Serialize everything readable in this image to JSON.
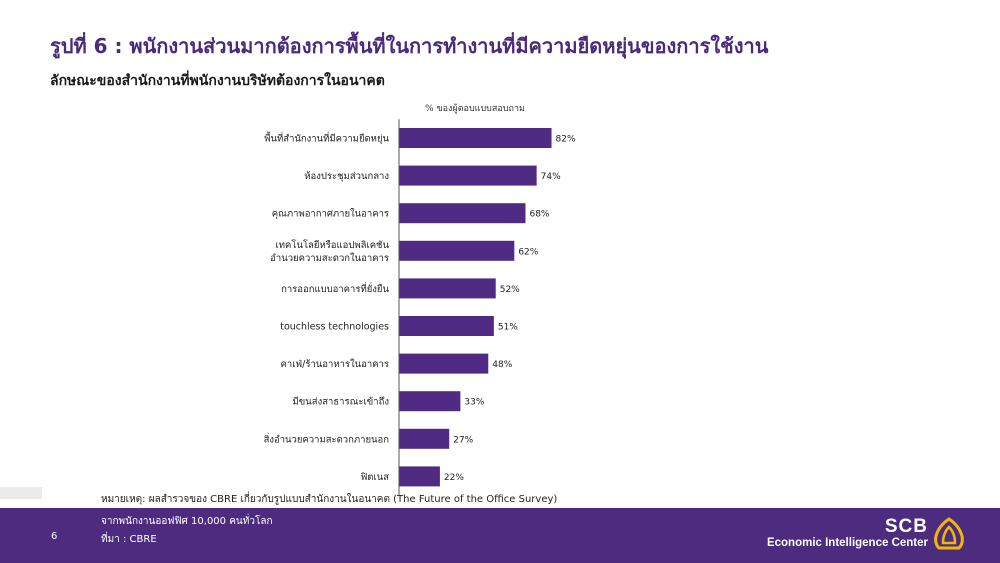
{
  "header": {
    "title": "รูปที่ 6 : พนักงานส่วนมากต้องการพื้นที่ในการทำงานที่มีความยืดหยุ่นของการใช้งาน",
    "subtitle": "ลักษณะของสำนักงานที่พนักงานบริษัทต้องการในอนาคต"
  },
  "chart_data": {
    "type": "bar",
    "orientation": "horizontal",
    "value_caption": "% ของผู้ตอบแบบสอบถาม",
    "categories": [
      [
        "พื้นที่สำนักงานที่มีความยืดหยุ่น"
      ],
      [
        "ห้องประชุมส่วนกลาง"
      ],
      [
        "คุณภาพอากาศภายในอาคาร"
      ],
      [
        "เทคโนโลยีหรือแอปพลิเคชัน",
        "อำนวยความสะดวกในอาคาร"
      ],
      [
        "การออกแบบอาคารที่ยั่งยืน"
      ],
      [
        "touchless technologies"
      ],
      [
        "คาเฟ่/ร้านอาหารในอาคาร"
      ],
      [
        "มีขนส่งสาธารณะเข้าถึง"
      ],
      [
        "สิ่งอำนวยความสะดวกภายนอก"
      ],
      [
        "ฟิตเนส"
      ]
    ],
    "values": [
      82,
      74,
      68,
      62,
      52,
      51,
      48,
      33,
      27,
      22
    ],
    "value_suffix": "%",
    "bar_color": "#4f2b83",
    "xlim": [
      0,
      100
    ],
    "grid": false,
    "legend": "none"
  },
  "notes": {
    "line1": "หมายเหตุ: ผลสำรวจของ CBRE เกี่ยวกับรูปแบบสำนักงานในอนาคต (The Future of the Office Survey)",
    "line2": "จากพนักงานออฟฟิศ 10,000 คนทั่วโลก",
    "line3": "ที่มา : CBRE"
  },
  "footer": {
    "page_number": "6",
    "brand": "SCB",
    "brand_sub": "Economic Intelligence Center",
    "logo_icon": "scb-shell-icon",
    "band_color": "#4d2b7f",
    "logo_color": "#f2b705"
  }
}
